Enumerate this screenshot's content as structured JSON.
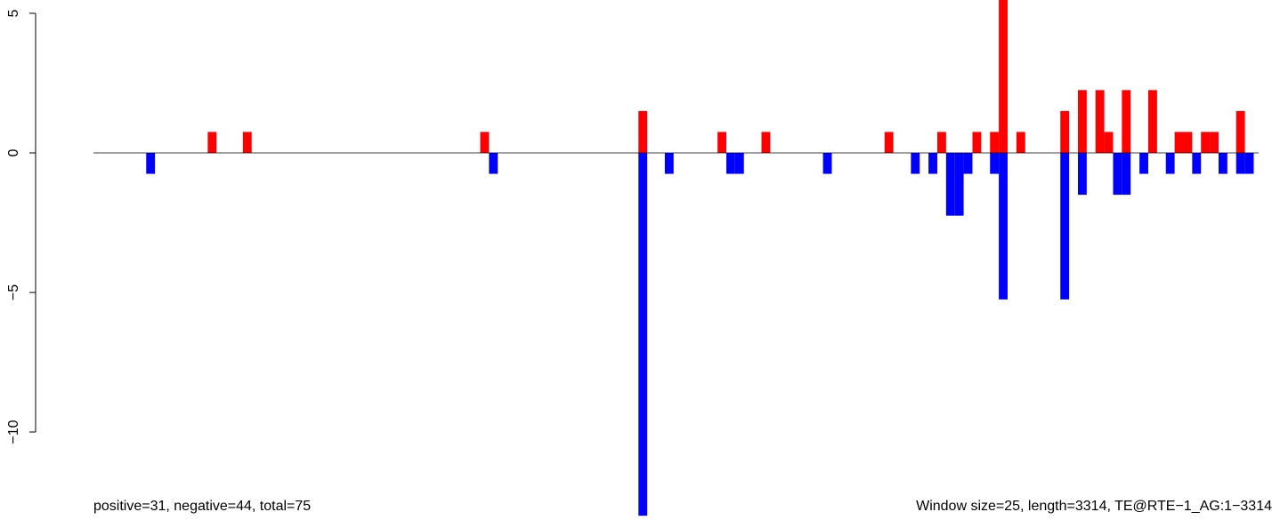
{
  "chart_data": {
    "type": "bar",
    "title": "",
    "xlabel": "",
    "ylabel": "",
    "ylim": [
      -13.0,
      5.5
    ],
    "y_ticks": [
      {
        "value": 5,
        "label": "5"
      },
      {
        "value": 0,
        "label": "0"
      },
      {
        "value": -5,
        "label": "−5"
      },
      {
        "value": -10,
        "label": "−10"
      }
    ],
    "window_size": 25,
    "sequence_length": 3314,
    "positive_color": "#ff0000",
    "negative_color": "#0000ff",
    "positive": [
      {
        "start": 325,
        "value": 0.75
      },
      {
        "start": 425,
        "value": 0.75
      },
      {
        "start": 1100,
        "value": 0.75
      },
      {
        "start": 1550,
        "value": 1.5
      },
      {
        "start": 1775,
        "value": 0.75
      },
      {
        "start": 1900,
        "value": 0.75
      },
      {
        "start": 2250,
        "value": 0.75
      },
      {
        "start": 2400,
        "value": 0.75
      },
      {
        "start": 2500,
        "value": 0.75
      },
      {
        "start": 2550,
        "value": 0.75
      },
      {
        "start": 2575,
        "value": 5.5
      },
      {
        "start": 2625,
        "value": 0.75
      },
      {
        "start": 2750,
        "value": 1.5
      },
      {
        "start": 2800,
        "value": 2.25
      },
      {
        "start": 2850,
        "value": 2.25
      },
      {
        "start": 2875,
        "value": 0.75
      },
      {
        "start": 2925,
        "value": 2.25
      },
      {
        "start": 3000,
        "value": 2.25
      },
      {
        "start": 3075,
        "value": 0.75
      },
      {
        "start": 3100,
        "value": 0.75
      },
      {
        "start": 3150,
        "value": 0.75
      },
      {
        "start": 3175,
        "value": 0.75
      },
      {
        "start": 3250,
        "value": 1.5
      }
    ],
    "negative": [
      {
        "start": 150,
        "value": -0.75
      },
      {
        "start": 1125,
        "value": -0.75
      },
      {
        "start": 1550,
        "value": -13.0
      },
      {
        "start": 1625,
        "value": -0.75
      },
      {
        "start": 1800,
        "value": -0.75
      },
      {
        "start": 1825,
        "value": -0.75
      },
      {
        "start": 2075,
        "value": -0.75
      },
      {
        "start": 2325,
        "value": -0.75
      },
      {
        "start": 2375,
        "value": -0.75
      },
      {
        "start": 2425,
        "value": -2.25
      },
      {
        "start": 2450,
        "value": -2.25
      },
      {
        "start": 2475,
        "value": -0.75
      },
      {
        "start": 2550,
        "value": -0.75
      },
      {
        "start": 2575,
        "value": -5.25
      },
      {
        "start": 2750,
        "value": -5.25
      },
      {
        "start": 2800,
        "value": -1.5
      },
      {
        "start": 2900,
        "value": -1.5
      },
      {
        "start": 2925,
        "value": -1.5
      },
      {
        "start": 2975,
        "value": -0.75
      },
      {
        "start": 3050,
        "value": -0.75
      },
      {
        "start": 3125,
        "value": -0.75
      },
      {
        "start": 3200,
        "value": -0.75
      },
      {
        "start": 3250,
        "value": -0.75
      },
      {
        "start": 3275,
        "value": -0.75
      }
    ]
  },
  "footer": {
    "left": "positive=31, negative=44, total=75",
    "right": "Window size=25, length=3314, TE@RTE−1_AG:1−3314"
  }
}
